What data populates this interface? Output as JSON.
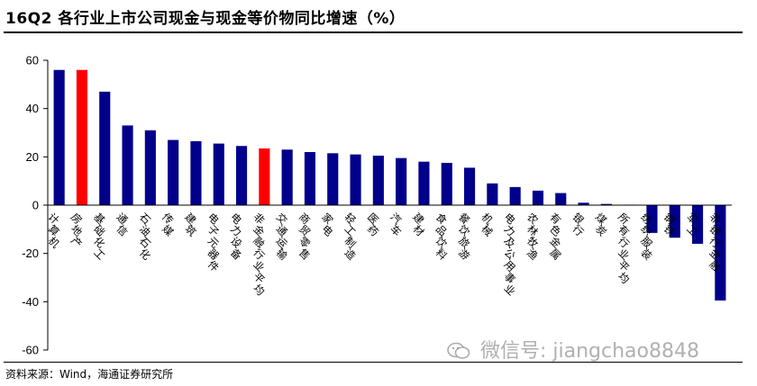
{
  "title": "16Q2 各行业上市公司现金与现金等价物同比增速（%）",
  "source": "资料来源：Wind，海通证券研究所",
  "watermark": "微信号: jiangchao8848",
  "colors": {
    "bar": "#00008b",
    "highlight": "#ff0000",
    "axis": "#000000"
  },
  "chart_data": {
    "type": "bar",
    "title": "16Q2 各行业上市公司现金与现金等价物同比增速（%）",
    "ylim": [
      -60,
      60
    ],
    "yticks": [
      -60,
      -40,
      -20,
      0,
      20,
      40,
      60
    ],
    "highlighted": [
      "房地产",
      "非金融行业平均"
    ],
    "categories": [
      "计算机",
      "房地产",
      "基础化工",
      "通信",
      "石油石化",
      "传媒",
      "建筑",
      "电子元器件",
      "电力设备",
      "非金融行业平均",
      "交通运输",
      "商贸零售",
      "家电",
      "轻工制造",
      "医药",
      "汽车",
      "建材",
      "食品饮料",
      "餐饮旅游",
      "机械",
      "电力及公用事业",
      "农林牧渔",
      "有色金属",
      "银行",
      "煤炭",
      "所有行业平均",
      "纺织服装",
      "钢铁",
      "军工",
      "非银行金融"
    ],
    "values": [
      56,
      56,
      47,
      33,
      31,
      27,
      26.5,
      25.5,
      24.5,
      23.5,
      23,
      22,
      21.5,
      21,
      20.5,
      19.5,
      18,
      17.5,
      15.5,
      9,
      7.5,
      6,
      5,
      1,
      0.5,
      0.2,
      -11.5,
      -13.5,
      -16,
      -39.5
    ]
  }
}
